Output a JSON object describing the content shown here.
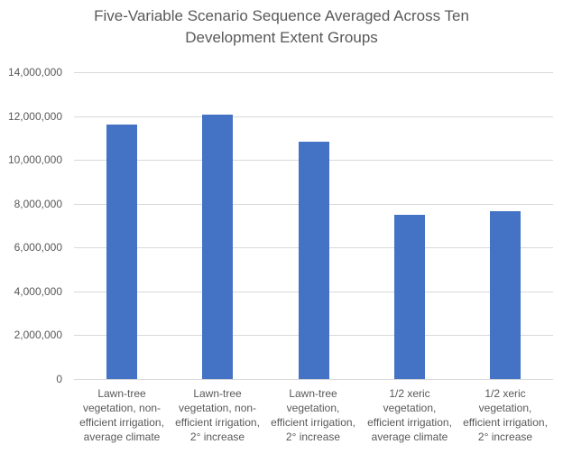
{
  "chart_data": {
    "type": "bar",
    "title": "Five-Variable Scenario Sequence Averaged Across Ten Development Extent Groups",
    "title_lines": [
      "Five-Variable Scenario Sequence Averaged Across Ten",
      "Development Extent Groups"
    ],
    "categories": [
      "Lawn-tree vegetation, non-efficient irrigation, average climate",
      "Lawn-tree vegetation, non-efficient irrigation, 2° increase",
      "Lawn-tree vegetation, efficient irrigation, 2° increase",
      "1/2 xeric vegetation, efficient irrigation, average climate",
      "1/2 xeric vegetation, efficient irrigation, 2° increase"
    ],
    "category_lines": [
      [
        "Lawn-tree",
        "vegetation, non-",
        "efficient irrigation,",
        "average climate"
      ],
      [
        "Lawn-tree",
        "vegetation, non-",
        "efficient irrigation,",
        "2° increase"
      ],
      [
        "Lawn-tree",
        "vegetation,",
        "efficient irrigation,",
        "2° increase"
      ],
      [
        "1/2 xeric",
        "vegetation,",
        "efficient irrigation,",
        "average climate"
      ],
      [
        "1/2 xeric",
        "vegetation,",
        "efficient irrigation,",
        "2° increase"
      ]
    ],
    "values": [
      11600000,
      12080000,
      10830000,
      7480000,
      7660000
    ],
    "xlabel": "",
    "ylabel": "",
    "ylim": [
      0,
      14000000
    ],
    "yticks": [
      0,
      2000000,
      4000000,
      6000000,
      8000000,
      10000000,
      12000000,
      14000000
    ],
    "ytick_labels": [
      "0",
      "2,000,000",
      "4,000,000",
      "6,000,000",
      "8,000,000",
      "10,000,000",
      "12,000,000",
      "14,000,000"
    ],
    "grid": true,
    "legend": false,
    "colors": {
      "bar": "#4472C4",
      "gridline": "#D9D9D9",
      "axis_line": "#D9D9D9",
      "text": "#595959",
      "background": "#FFFFFF"
    }
  }
}
